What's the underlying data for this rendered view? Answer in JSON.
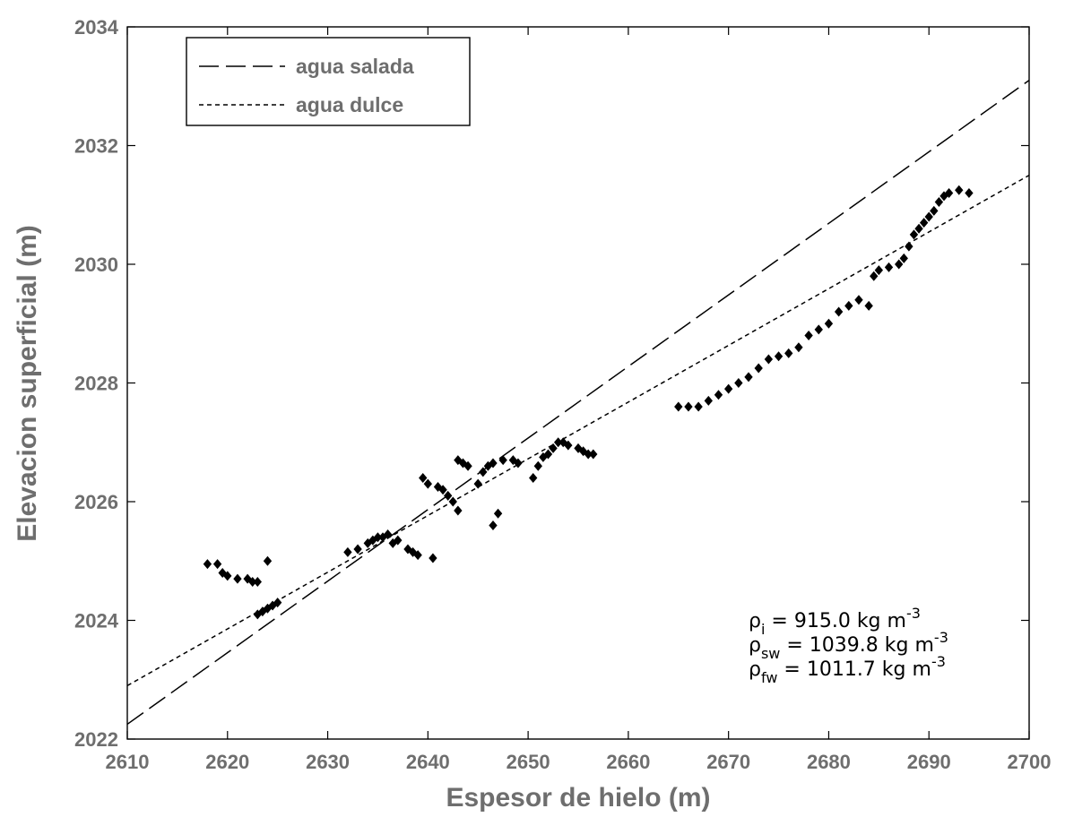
{
  "chart_data": {
    "type": "scatter",
    "xlabel": "Espesor de hielo (m)",
    "ylabel": "Elevacion superficial (m)",
    "xlim": [
      2610,
      2700
    ],
    "ylim": [
      2022,
      2034
    ],
    "xticks": [
      2610,
      2620,
      2630,
      2640,
      2650,
      2660,
      2670,
      2680,
      2690,
      2700
    ],
    "yticks": [
      2022,
      2024,
      2026,
      2028,
      2030,
      2032,
      2034
    ],
    "grid": false,
    "legend_position": "top-left",
    "series": [
      {
        "name": "agua salada",
        "kind": "line",
        "style": "long-dash",
        "color": "#000000",
        "x": [
          2610,
          2700
        ],
        "y": [
          2022.25,
          2033.1
        ]
      },
      {
        "name": "agua dulce",
        "kind": "line",
        "style": "short-dash",
        "color": "#000000",
        "x": [
          2610,
          2700
        ],
        "y": [
          2022.9,
          2031.5
        ]
      },
      {
        "kind": "markers",
        "marker": "diamond",
        "color": "#000000",
        "x": [
          2618,
          2619,
          2619.5,
          2620,
          2621,
          2622,
          2622.5,
          2623,
          2624,
          2623,
          2623.5,
          2624,
          2624.5,
          2625,
          2632,
          2633,
          2634,
          2634.5,
          2635,
          2635.5,
          2636,
          2636.5,
          2637,
          2638,
          2638.5,
          2639,
          2640.5,
          2639.5,
          2640,
          2641,
          2641.5,
          2642,
          2642.5,
          2643,
          2643,
          2643.5,
          2644,
          2645,
          2645.5,
          2646,
          2646.5,
          2647,
          2646.5,
          2647.5,
          2648.5,
          2649,
          2650.5,
          2651,
          2651.5,
          2652,
          2652.5,
          2653,
          2653.5,
          2654,
          2655,
          2655.5,
          2656,
          2656.5,
          2665,
          2666,
          2667,
          2668,
          2669,
          2670,
          2671,
          2672,
          2673,
          2674,
          2675,
          2676,
          2677,
          2678,
          2679,
          2680,
          2681,
          2682,
          2683,
          2684,
          2684.5,
          2685,
          2686,
          2687,
          2687.5,
          2688,
          2688.5,
          2689,
          2689.5,
          2690,
          2690.5,
          2691,
          2691.5,
          2692,
          2693,
          2694
        ],
        "y": [
          2024.95,
          2024.95,
          2024.8,
          2024.75,
          2024.7,
          2024.7,
          2024.65,
          2024.65,
          2025.0,
          2024.1,
          2024.15,
          2024.2,
          2024.25,
          2024.3,
          2025.15,
          2025.2,
          2025.3,
          2025.35,
          2025.4,
          2025.4,
          2025.45,
          2025.3,
          2025.35,
          2025.2,
          2025.15,
          2025.1,
          2025.05,
          2026.4,
          2026.3,
          2026.25,
          2026.2,
          2026.1,
          2026.0,
          2025.85,
          2026.7,
          2026.65,
          2026.6,
          2026.3,
          2026.5,
          2026.6,
          2025.6,
          2025.8,
          2026.65,
          2026.7,
          2026.7,
          2026.65,
          2026.4,
          2026.6,
          2026.75,
          2026.8,
          2026.9,
          2027.0,
          2027.0,
          2026.95,
          2026.9,
          2026.85,
          2026.8,
          2026.8,
          2027.6,
          2027.6,
          2027.6,
          2027.7,
          2027.8,
          2027.9,
          2028.0,
          2028.1,
          2028.25,
          2028.4,
          2028.45,
          2028.5,
          2028.6,
          2028.8,
          2028.9,
          2029.0,
          2029.2,
          2029.3,
          2029.4,
          2029.3,
          2029.8,
          2029.9,
          2029.95,
          2030.0,
          2030.1,
          2030.3,
          2030.5,
          2030.6,
          2030.7,
          2030.8,
          2030.9,
          2031.05,
          2031.15,
          2031.2,
          2031.25,
          2031.2
        ]
      }
    ],
    "annotations": [
      {
        "symbol": "ρ",
        "sub": "i",
        "text": " = 915.0 kg m",
        "sup": "-3"
      },
      {
        "symbol": "ρ",
        "sub": "sw",
        "text": " = 1039.8 kg m",
        "sup": "-3"
      },
      {
        "symbol": "ρ",
        "sub": "fw",
        "text": " = 1011.7 kg m",
        "sup": "-3"
      }
    ]
  }
}
